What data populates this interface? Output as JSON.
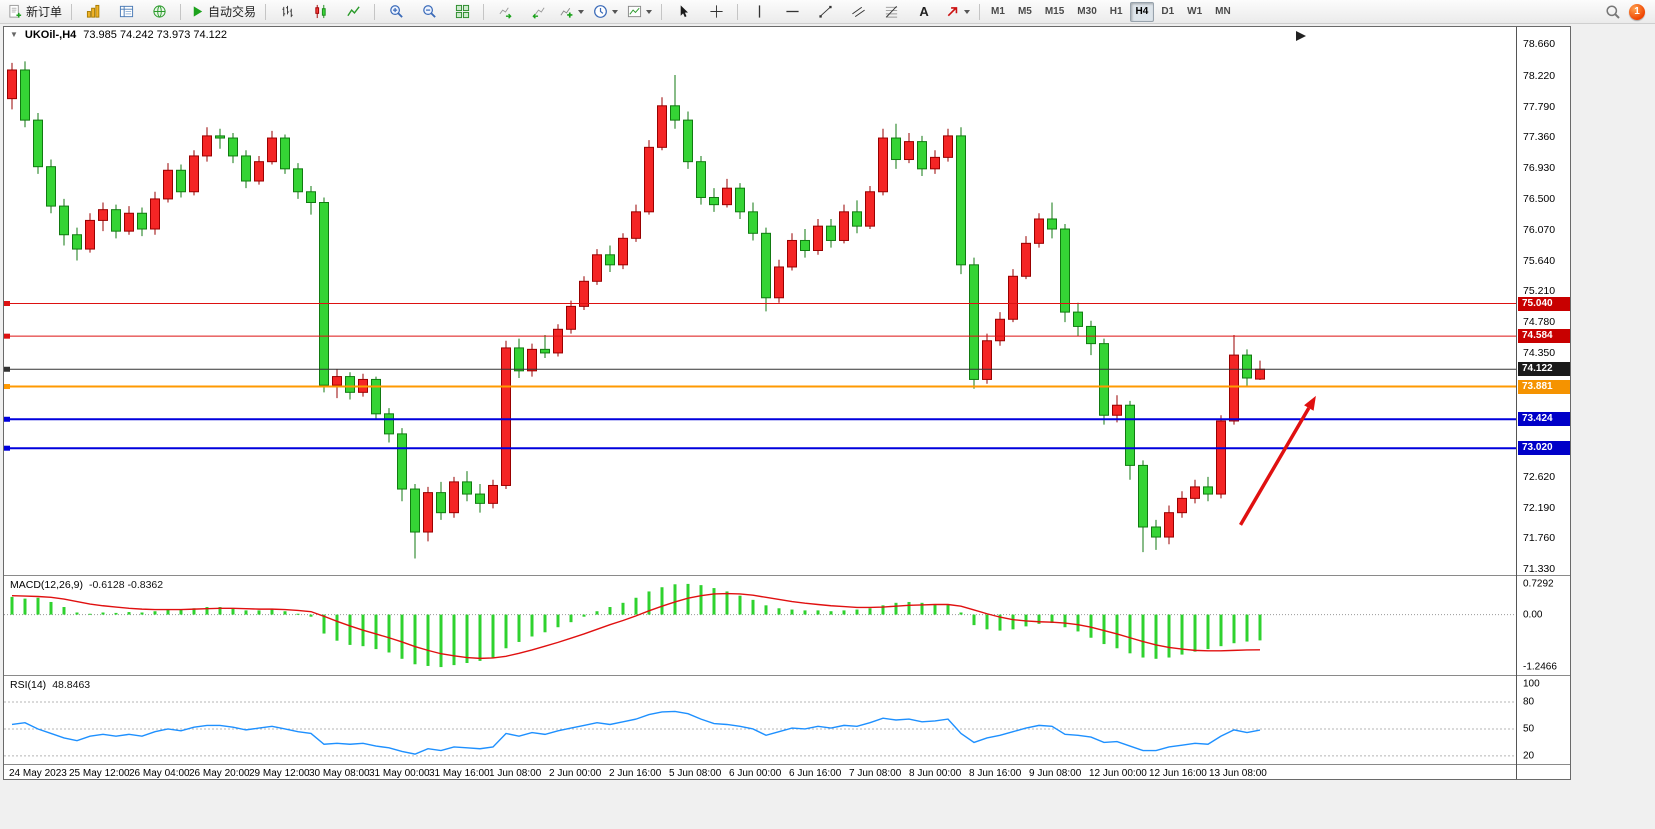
{
  "toolbar": {
    "new_order_label": "新订单",
    "auto_trading_label": "自动交易",
    "text_tool_label": "A",
    "timeframes": [
      "M1",
      "M5",
      "M15",
      "M30",
      "H1",
      "H4",
      "D1",
      "W1",
      "MN"
    ],
    "active_timeframe": "H4",
    "notification_count": "1"
  },
  "chart": {
    "collapse_glyph": "▼",
    "title_symbol": "UKOil-,H4",
    "title_ohlc": "73.985 74.242 73.973 74.122",
    "time_axis": [
      "24 May 2023",
      "25 May 12:00",
      "26 May 04:00",
      "26 May 20:00",
      "29 May 12:00",
      "30 May 08:00",
      "31 May 00:00",
      "31 May 16:00",
      "1 Jun 08:00",
      "2 Jun 00:00",
      "2 Jun 16:00",
      "5 Jun 08:00",
      "6 Jun 00:00",
      "6 Jun 16:00",
      "7 Jun 08:00",
      "8 Jun 00:00",
      "8 Jun 16:00",
      "9 Jun 08:00",
      "12 Jun 00:00",
      "12 Jun 16:00",
      "13 Jun 08:00"
    ]
  },
  "macd": {
    "label": "MACD(12,26,9)",
    "values": "-0.6128 -0.8362"
  },
  "rsi": {
    "label": "RSI(14)",
    "values": "48.8463"
  },
  "chart_data": {
    "type": "candlestick",
    "symbol": "UKOil-",
    "timeframe": "H4",
    "last_ohlc": {
      "open": "73.985",
      "high": "74.242",
      "low": "73.973",
      "close": "74.122"
    },
    "price_ylim": [
      71.25,
      78.9
    ],
    "up_color": "#f42525",
    "up_stroke": "#990000",
    "down_color": "#35d435",
    "down_stroke": "#117a11",
    "price_ticks": [
      "78.660",
      "78.220",
      "77.790",
      "77.360",
      "76.930",
      "76.500",
      "76.070",
      "75.640",
      "75.210",
      "74.780",
      "74.350",
      "72.620",
      "72.190",
      "71.760",
      "71.330"
    ],
    "levels": [
      {
        "price": 75.04,
        "label": "75.040",
        "color": "#dd1111",
        "tag_bg": "#c80000",
        "width": 1
      },
      {
        "price": 74.584,
        "label": "74.584",
        "color": "#dd1111",
        "tag_bg": "#c80000",
        "width": 1
      },
      {
        "price": 74.122,
        "label": "74.122",
        "color": "#333333",
        "tag_bg": "#1a1a1a",
        "width": 1
      },
      {
        "price": 73.881,
        "label": "73.881",
        "color": "#ff9900",
        "tag_bg": "#f59300",
        "width": 2
      },
      {
        "price": 73.424,
        "label": "73.424",
        "color": "#0000dd",
        "tag_bg": "#0000c8",
        "width": 2
      },
      {
        "price": 73.02,
        "label": "73.020",
        "color": "#0000dd",
        "tag_bg": "#0000c8",
        "width": 2
      }
    ],
    "candles": [
      [
        77.9,
        78.4,
        77.75,
        78.3
      ],
      [
        78.3,
        78.42,
        77.5,
        77.6
      ],
      [
        77.6,
        77.7,
        76.85,
        76.95
      ],
      [
        76.95,
        77.05,
        76.3,
        76.4
      ],
      [
        76.4,
        76.5,
        75.85,
        76.0
      ],
      [
        76.0,
        76.1,
        75.64,
        75.8
      ],
      [
        75.8,
        76.3,
        75.75,
        76.2
      ],
      [
        76.2,
        76.45,
        76.05,
        76.35
      ],
      [
        76.35,
        76.42,
        75.95,
        76.05
      ],
      [
        76.05,
        76.4,
        76.0,
        76.3
      ],
      [
        76.3,
        76.38,
        75.98,
        76.08
      ],
      [
        76.08,
        76.6,
        76.0,
        76.5
      ],
      [
        76.5,
        77.0,
        76.45,
        76.9
      ],
      [
        76.9,
        76.98,
        76.52,
        76.6
      ],
      [
        76.6,
        77.18,
        76.55,
        77.1
      ],
      [
        77.1,
        77.5,
        77.02,
        77.38
      ],
      [
        77.38,
        77.48,
        77.2,
        77.35
      ],
      [
        77.35,
        77.42,
        77.0,
        77.1
      ],
      [
        77.1,
        77.18,
        76.65,
        76.75
      ],
      [
        76.75,
        77.1,
        76.7,
        77.02
      ],
      [
        77.02,
        77.45,
        76.98,
        77.35
      ],
      [
        77.35,
        77.4,
        76.85,
        76.92
      ],
      [
        76.92,
        77.0,
        76.5,
        76.6
      ],
      [
        76.6,
        76.68,
        76.28,
        76.45
      ],
      [
        76.45,
        76.52,
        73.8,
        73.9
      ],
      [
        73.9,
        74.12,
        73.72,
        74.02
      ],
      [
        74.02,
        74.08,
        73.7,
        73.8
      ],
      [
        73.8,
        74.06,
        73.74,
        73.98
      ],
      [
        73.98,
        74.02,
        73.42,
        73.5
      ],
      [
        73.5,
        73.58,
        73.1,
        73.22
      ],
      [
        73.22,
        73.3,
        72.28,
        72.45
      ],
      [
        72.45,
        72.52,
        71.48,
        71.85
      ],
      [
        71.85,
        72.48,
        71.72,
        72.4
      ],
      [
        72.4,
        72.55,
        72.02,
        72.12
      ],
      [
        72.12,
        72.62,
        72.05,
        72.55
      ],
      [
        72.55,
        72.7,
        72.28,
        72.38
      ],
      [
        72.38,
        72.52,
        72.12,
        72.25
      ],
      [
        72.25,
        72.58,
        72.18,
        72.5
      ],
      [
        72.5,
        74.52,
        72.45,
        74.42
      ],
      [
        74.42,
        74.55,
        74.0,
        74.1
      ],
      [
        74.1,
        74.48,
        74.02,
        74.4
      ],
      [
        74.4,
        74.6,
        74.28,
        74.35
      ],
      [
        74.35,
        74.75,
        74.3,
        74.68
      ],
      [
        74.68,
        75.08,
        74.62,
        75.0
      ],
      [
        75.0,
        75.42,
        74.95,
        75.35
      ],
      [
        75.35,
        75.8,
        75.3,
        75.72
      ],
      [
        75.72,
        75.85,
        75.48,
        75.58
      ],
      [
        75.58,
        76.02,
        75.52,
        75.95
      ],
      [
        75.95,
        76.42,
        75.9,
        76.32
      ],
      [
        76.32,
        77.32,
        76.28,
        77.22
      ],
      [
        77.22,
        77.92,
        77.18,
        77.8
      ],
      [
        77.8,
        78.23,
        77.48,
        77.6
      ],
      [
        77.6,
        77.72,
        76.92,
        77.02
      ],
      [
        77.02,
        77.1,
        76.42,
        76.52
      ],
      [
        76.52,
        76.65,
        76.32,
        76.42
      ],
      [
        76.42,
        76.78,
        76.38,
        76.65
      ],
      [
        76.65,
        76.72,
        76.22,
        76.32
      ],
      [
        76.32,
        76.45,
        75.92,
        76.02
      ],
      [
        76.02,
        76.1,
        74.93,
        75.12
      ],
      [
        75.12,
        75.65,
        75.05,
        75.55
      ],
      [
        75.55,
        76.02,
        75.5,
        75.92
      ],
      [
        75.92,
        76.08,
        75.68,
        75.78
      ],
      [
        75.78,
        76.22,
        75.72,
        76.12
      ],
      [
        76.12,
        76.22,
        75.82,
        75.92
      ],
      [
        75.92,
        76.42,
        75.88,
        76.32
      ],
      [
        76.32,
        76.48,
        76.02,
        76.12
      ],
      [
        76.12,
        76.68,
        76.08,
        76.6
      ],
      [
        76.6,
        77.48,
        76.55,
        77.35
      ],
      [
        77.35,
        77.55,
        76.92,
        77.05
      ],
      [
        77.05,
        77.42,
        77.0,
        77.3
      ],
      [
        77.3,
        77.38,
        76.82,
        76.92
      ],
      [
        76.92,
        77.18,
        76.85,
        77.08
      ],
      [
        77.08,
        77.48,
        77.02,
        77.38
      ],
      [
        77.38,
        77.5,
        75.45,
        75.58
      ],
      [
        75.58,
        75.68,
        73.85,
        73.98
      ],
      [
        73.98,
        74.62,
        73.92,
        74.52
      ],
      [
        74.52,
        74.92,
        74.45,
        74.82
      ],
      [
        74.82,
        75.52,
        74.78,
        75.42
      ],
      [
        75.42,
        75.98,
        75.38,
        75.88
      ],
      [
        75.88,
        76.3,
        75.82,
        76.22
      ],
      [
        76.22,
        76.45,
        75.95,
        76.08
      ],
      [
        76.08,
        76.15,
        74.78,
        74.92
      ],
      [
        74.92,
        75.05,
        74.58,
        74.72
      ],
      [
        74.72,
        74.8,
        74.32,
        74.48
      ],
      [
        74.48,
        74.55,
        73.35,
        73.48
      ],
      [
        73.48,
        73.76,
        73.38,
        73.62
      ],
      [
        73.62,
        73.68,
        72.58,
        72.78
      ],
      [
        72.78,
        72.85,
        71.57,
        71.92
      ],
      [
        71.92,
        72.02,
        71.6,
        71.78
      ],
      [
        71.78,
        72.22,
        71.68,
        72.12
      ],
      [
        72.12,
        72.42,
        72.05,
        72.32
      ],
      [
        72.32,
        72.58,
        72.25,
        72.48
      ],
      [
        72.48,
        72.62,
        72.28,
        72.38
      ],
      [
        72.38,
        73.48,
        72.32,
        73.4
      ],
      [
        73.4,
        74.6,
        73.35,
        74.32
      ],
      [
        74.32,
        74.4,
        73.88,
        74.0
      ],
      [
        73.985,
        74.242,
        73.973,
        74.122
      ]
    ],
    "indicators": [
      {
        "name": "MACD",
        "params": "(12,26,9)",
        "current": "-0.6128 -0.8362",
        "ylim": [
          -1.435,
          0.917
        ],
        "ticks": [
          "0.7292",
          "0.00",
          "-1.2466"
        ],
        "histogram_color": "#2fd22f",
        "signal_color": "#e01010",
        "values": [
          0.42,
          0.38,
          0.4,
          0.3,
          0.18,
          0.05,
          0.02,
          0.05,
          0.04,
          0.06,
          0.05,
          0.08,
          0.12,
          0.12,
          0.15,
          0.18,
          0.18,
          0.15,
          0.1,
          0.1,
          0.12,
          0.08,
          0.02,
          -0.05,
          -0.45,
          -0.62,
          -0.72,
          -0.75,
          -0.82,
          -0.9,
          -1.05,
          -1.18,
          -1.22,
          -1.2466,
          -1.2,
          -1.15,
          -1.1,
          -1.02,
          -0.8,
          -0.65,
          -0.52,
          -0.42,
          -0.3,
          -0.18,
          -0.05,
          0.08,
          0.18,
          0.28,
          0.4,
          0.55,
          0.65,
          0.72,
          0.7292,
          0.7,
          0.63,
          0.55,
          0.45,
          0.35,
          0.22,
          0.15,
          0.12,
          0.1,
          0.1,
          0.08,
          0.1,
          0.12,
          0.15,
          0.22,
          0.28,
          0.3,
          0.28,
          0.25,
          0.25,
          0.05,
          -0.25,
          -0.35,
          -0.38,
          -0.35,
          -0.28,
          -0.22,
          -0.2,
          -0.3,
          -0.4,
          -0.55,
          -0.7,
          -0.8,
          -0.92,
          -1.02,
          -1.05,
          -1.02,
          -0.95,
          -0.88,
          -0.82,
          -0.75,
          -0.68,
          -0.64,
          -0.6128
        ],
        "signal": [
          0.45,
          0.44,
          0.43,
          0.41,
          0.37,
          0.31,
          0.25,
          0.21,
          0.18,
          0.15,
          0.13,
          0.12,
          0.12,
          0.12,
          0.13,
          0.14,
          0.15,
          0.15,
          0.14,
          0.13,
          0.13,
          0.12,
          0.1,
          0.07,
          -0.04,
          -0.16,
          -0.27,
          -0.37,
          -0.46,
          -0.55,
          -0.65,
          -0.76,
          -0.85,
          -0.93,
          -0.98,
          -1.02,
          -1.04,
          -1.03,
          -0.99,
          -0.92,
          -0.84,
          -0.75,
          -0.66,
          -0.56,
          -0.46,
          -0.35,
          -0.24,
          -0.14,
          -0.03,
          0.09,
          0.2,
          0.3,
          0.39,
          0.45,
          0.49,
          0.5,
          0.49,
          0.46,
          0.41,
          0.36,
          0.31,
          0.27,
          0.24,
          0.21,
          0.19,
          0.17,
          0.17,
          0.18,
          0.2,
          0.22,
          0.23,
          0.24,
          0.24,
          0.2,
          0.11,
          0.02,
          -0.06,
          -0.12,
          -0.15,
          -0.17,
          -0.18,
          -0.2,
          -0.24,
          -0.3,
          -0.38,
          -0.46,
          -0.55,
          -0.64,
          -0.72,
          -0.78,
          -0.82,
          -0.85,
          -0.86,
          -0.86,
          -0.85,
          -0.84,
          -0.8362
        ]
      },
      {
        "name": "RSI",
        "params": "(14)",
        "current": "48.8463",
        "ylim": [
          11,
          109
        ],
        "ticks": [
          "100",
          "80",
          "50",
          "20"
        ],
        "levels": [
          80,
          50,
          20
        ],
        "color": "#1e90ff",
        "values": [
          55,
          57,
          50,
          45,
          40,
          37,
          42,
          44,
          42,
          44,
          42,
          47,
          50,
          48,
          52,
          54,
          54,
          52,
          49,
          51,
          53,
          50,
          47,
          45,
          33,
          34,
          33,
          34,
          31,
          29,
          25,
          22,
          28,
          26,
          30,
          29,
          28,
          30,
          45,
          42,
          46,
          44,
          48,
          51,
          54,
          57,
          55,
          58,
          61,
          66,
          69,
          69.5,
          67,
          61,
          56,
          55,
          53,
          50,
          43,
          47,
          51,
          50,
          53,
          51,
          54,
          53,
          57,
          62,
          60,
          61,
          58,
          59,
          61,
          45,
          35,
          40,
          43,
          47,
          51,
          54,
          53,
          44,
          43,
          41,
          35,
          36,
          31,
          26,
          26,
          30,
          32,
          34,
          33,
          42,
          49,
          46,
          48.8463
        ]
      }
    ],
    "annotation_arrow": {
      "from_bar": 94.5,
      "from_price": 71.95,
      "to_bar": 100.3,
      "to_price": 73.75,
      "color": "#e01010",
      "width": 3.5
    }
  }
}
